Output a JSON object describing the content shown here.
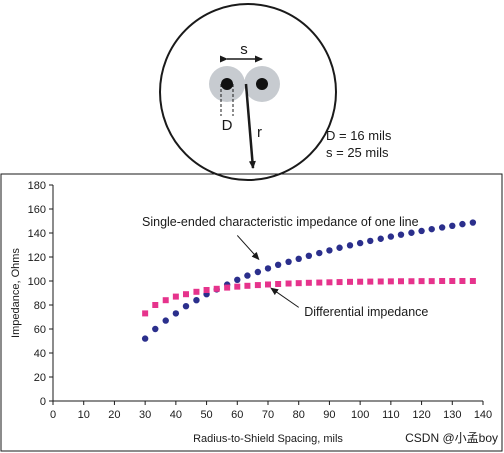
{
  "diagram": {
    "spacing_label": "s",
    "diameter_label": "D",
    "radius_label": "r",
    "param_d": "D = 16 mils",
    "param_s": "s = 25 mils"
  },
  "chart_data": {
    "type": "scatter",
    "xlabel": "Radius-to-Shield Spacing, mils",
    "ylabel": "Impedance, Ohms",
    "xlim": [
      0,
      140
    ],
    "ylim": [
      0,
      180
    ],
    "xticks": [
      0,
      10,
      20,
      30,
      40,
      50,
      60,
      70,
      80,
      90,
      100,
      110,
      120,
      130,
      140
    ],
    "yticks": [
      0,
      20,
      40,
      60,
      80,
      100,
      120,
      140,
      160,
      180
    ],
    "grid": false,
    "legend": "none",
    "series": [
      {
        "marker": "circle",
        "color": "#2b2f8c",
        "x": [
          30,
          33.3,
          36.7,
          40,
          43.3,
          46.7,
          50,
          53.3,
          56.7,
          60,
          63.3,
          66.7,
          70,
          73.3,
          76.7,
          80,
          83.3,
          86.7,
          90,
          93.3,
          96.7,
          100,
          103.3,
          106.7,
          110,
          113.3,
          116.7,
          120,
          123.3,
          126.7,
          130,
          133.3,
          136.7
        ],
        "y": [
          52,
          60,
          67,
          73,
          79,
          84,
          89,
          93,
          97,
          101,
          104.5,
          107.5,
          110.5,
          113.5,
          116,
          118.5,
          121,
          123.3,
          125.5,
          127.7,
          129.7,
          131.6,
          133.4,
          135.2,
          137,
          138.6,
          140.2,
          141.7,
          143.2,
          144.6,
          146,
          147.4,
          148.7
        ]
      },
      {
        "marker": "square",
        "color": "#e6338c",
        "x": [
          30,
          33.3,
          36.7,
          40,
          43.3,
          46.7,
          50,
          53.3,
          56.7,
          60,
          63.3,
          66.7,
          70,
          73.3,
          76.7,
          80,
          83.3,
          86.7,
          90,
          93.3,
          96.7,
          100,
          103.3,
          106.7,
          110,
          113.3,
          116.7,
          120,
          123.3,
          126.7,
          130,
          133.3,
          136.7
        ],
        "y": [
          73,
          80,
          84,
          87,
          89,
          91,
          92.5,
          93.5,
          94.5,
          95.3,
          96,
          96.6,
          97.1,
          97.5,
          97.9,
          98.2,
          98.5,
          98.7,
          98.9,
          99.1,
          99.3,
          99.4,
          99.5,
          99.6,
          99.7,
          99.8,
          99.8,
          99.9,
          99.9,
          100,
          100,
          100,
          100
        ]
      }
    ],
    "annotations": [
      {
        "text": "Single-ended characteristic impedance of one line",
        "text_x": 74,
        "text_y": 146,
        "arrow_from": [
          60,
          138
        ],
        "arrow_to": [
          67,
          118
        ]
      },
      {
        "text": "Differential impedance",
        "text_x": 102,
        "text_y": 71,
        "arrow_from": [
          80,
          78
        ],
        "arrow_to": [
          71,
          94
        ]
      }
    ]
  },
  "watermark": "CSDN @小孟boy"
}
